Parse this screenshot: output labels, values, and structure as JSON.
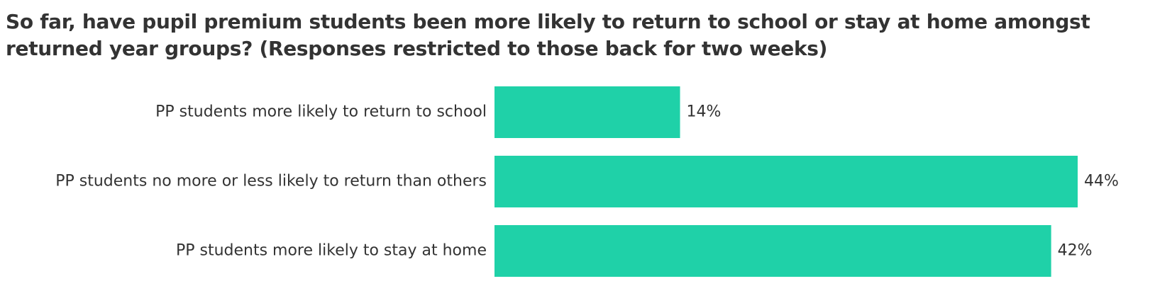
{
  "chart_data": {
    "type": "bar",
    "orientation": "horizontal",
    "title": "So far, have pupil premium students been more likely to return to school or stay at home amongst returned year groups? (Responses restricted to those back for two weeks)",
    "categories": [
      "PP students more likely to return to school",
      "PP students no more or less likely to return than others",
      "PP students more likely to stay at home"
    ],
    "values": [
      14,
      44,
      42
    ],
    "value_labels": [
      "14%",
      "44%",
      "42%"
    ],
    "unit": "%",
    "xlim": [
      0,
      44
    ],
    "grid": false,
    "legend": "none",
    "bar_color": "#1fd1a8",
    "text_color": "#333333"
  }
}
